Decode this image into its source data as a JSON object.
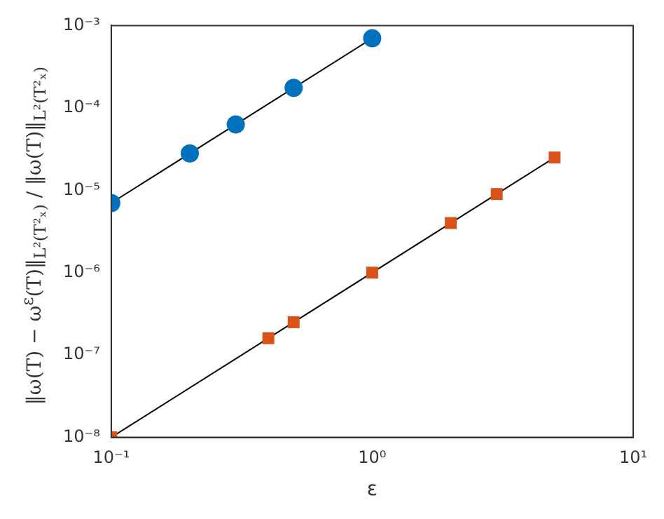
{
  "chart_data": {
    "type": "scatter",
    "xlabel": "ε",
    "ylabel": "‖ω(T) − ω$^{ε}$(T)‖$_{L²(T²ₓ)}$ / ‖ω(T)‖$_{L²(T²ₓ)}$",
    "log": "xy",
    "grid": false,
    "legend": false,
    "xlim": [
      0.1,
      10
    ],
    "xticks": [
      {
        "value": 0.1,
        "label": "10⁻¹"
      },
      {
        "value": 1,
        "label": "10⁰"
      },
      {
        "value": 10,
        "label": "10¹"
      }
    ],
    "ylim": [
      1e-08,
      0.001
    ],
    "yticks": [
      {
        "value": 1e-08,
        "label": "10⁻⁸"
      },
      {
        "value": 1e-07,
        "label": "10⁻⁷"
      },
      {
        "value": 1e-06,
        "label": "10⁻⁶"
      },
      {
        "value": 1e-05,
        "label": "10⁻⁵"
      },
      {
        "value": 0.0001,
        "label": "10⁻⁴"
      },
      {
        "value": 0.001,
        "label": "10⁻³"
      }
    ],
    "series": [
      {
        "type": "line",
        "color": "#000000",
        "marker": "none",
        "x": [
          0.1,
          1
        ],
        "values": [
          7e-06,
          0.0007
        ]
      },
      {
        "type": "line",
        "color": "#000000",
        "marker": "none",
        "x": [
          0.1,
          5
        ],
        "values": [
          1e-08,
          2.5e-05
        ]
      },
      {
        "type": "scatter",
        "color": "#0072bd",
        "marker": "circle",
        "x": [
          0.1,
          0.2,
          0.3,
          0.5,
          1
        ],
        "values": [
          7e-06,
          2.8e-05,
          6.3e-05,
          0.000175,
          0.0007
        ]
      },
      {
        "type": "scatter",
        "color": "#d95319",
        "marker": "square",
        "x": [
          0.1,
          0.4,
          0.5,
          1,
          2,
          3,
          5
        ],
        "values": [
          1e-08,
          1.6e-07,
          2.5e-07,
          1e-06,
          4e-06,
          9e-06,
          2.5e-05
        ]
      }
    ]
  }
}
